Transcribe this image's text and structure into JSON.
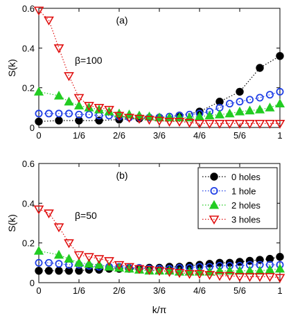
{
  "chart_data": [
    {
      "type": "scatter",
      "panel_label": "(a)",
      "annotation": "β=100",
      "ylabel": "S(k)",
      "xlabel": "",
      "xlim": [
        0,
        1
      ],
      "ylim": [
        0,
        0.6
      ],
      "xticks": [
        0,
        0.1667,
        0.3333,
        0.5,
        0.6667,
        0.8333,
        1
      ],
      "xtick_labels": [
        "0",
        "1/6",
        "2/6",
        "3/6",
        "4/6",
        "5/6",
        "1"
      ],
      "yticks": [
        0,
        0.2,
        0.4,
        0.6
      ],
      "ytick_labels": [
        "0",
        "0.2",
        "0.4",
        "0.6"
      ],
      "legend": false,
      "series": [
        {
          "name": "0 holes",
          "color": "#000000",
          "marker": "filled-circle",
          "x": [
            0,
            0.0833,
            0.1667,
            0.25,
            0.3333,
            0.4167,
            0.5,
            0.5833,
            0.6667,
            0.75,
            0.8333,
            0.9167,
            1
          ],
          "y": [
            0.03,
            0.035,
            0.035,
            0.035,
            0.04,
            0.045,
            0.05,
            0.06,
            0.08,
            0.13,
            0.18,
            0.3,
            0.36
          ]
        },
        {
          "name": "1 hole",
          "color": "#1f3fe6",
          "marker": "open-circle",
          "x": [
            0,
            0.0417,
            0.0833,
            0.125,
            0.1667,
            0.2083,
            0.25,
            0.2917,
            0.3333,
            0.375,
            0.4167,
            0.4583,
            0.5,
            0.5417,
            0.5833,
            0.625,
            0.6667,
            0.7083,
            0.75,
            0.7917,
            0.8333,
            0.875,
            0.9167,
            0.9583,
            1
          ],
          "y": [
            0.07,
            0.07,
            0.07,
            0.07,
            0.065,
            0.065,
            0.06,
            0.06,
            0.055,
            0.05,
            0.05,
            0.05,
            0.05,
            0.055,
            0.06,
            0.065,
            0.07,
            0.08,
            0.1,
            0.12,
            0.13,
            0.14,
            0.15,
            0.165,
            0.18
          ]
        },
        {
          "name": "2 holes",
          "color": "#22cc22",
          "marker": "filled-triangle-up",
          "x": [
            0,
            0.0833,
            0.125,
            0.1667,
            0.2083,
            0.25,
            0.2917,
            0.3333,
            0.375,
            0.4167,
            0.4583,
            0.5,
            0.5417,
            0.5833,
            0.625,
            0.6667,
            0.7083,
            0.75,
            0.7917,
            0.8333,
            0.875,
            0.9167,
            0.9583,
            1
          ],
          "y": [
            0.18,
            0.16,
            0.13,
            0.11,
            0.1,
            0.09,
            0.08,
            0.07,
            0.065,
            0.06,
            0.055,
            0.05,
            0.05,
            0.05,
            0.05,
            0.055,
            0.06,
            0.065,
            0.07,
            0.08,
            0.085,
            0.09,
            0.1,
            0.12
          ]
        },
        {
          "name": "3 holes",
          "color": "#e01010",
          "marker": "open-triangle-down",
          "x": [
            0,
            0.0417,
            0.0833,
            0.125,
            0.1667,
            0.2083,
            0.25,
            0.2917,
            0.3333,
            0.375,
            0.4167,
            0.4583,
            0.5,
            0.5417,
            0.5833,
            0.625,
            0.6667,
            0.7083,
            0.75,
            0.7917,
            0.8333,
            0.875,
            0.9167,
            0.9583,
            1
          ],
          "y": [
            0.59,
            0.54,
            0.4,
            0.26,
            0.15,
            0.11,
            0.1,
            0.09,
            0.06,
            0.05,
            0.045,
            0.04,
            0.035,
            0.03,
            0.03,
            0.025,
            0.02,
            0.02,
            0.02,
            0.02,
            0.02,
            0.02,
            0.02,
            0.02,
            0.02
          ]
        }
      ]
    },
    {
      "type": "scatter",
      "panel_label": "(b)",
      "annotation": "β=50",
      "ylabel": "S(k)",
      "xlabel": "k/π",
      "xlim": [
        0,
        1
      ],
      "ylim": [
        0,
        0.6
      ],
      "xticks": [
        0,
        0.1667,
        0.3333,
        0.5,
        0.6667,
        0.8333,
        1
      ],
      "xtick_labels": [
        "0",
        "1/6",
        "2/6",
        "3/6",
        "4/6",
        "5/6",
        "1"
      ],
      "yticks": [
        0,
        0.2,
        0.4,
        0.6
      ],
      "ytick_labels": [
        "0",
        "0.2",
        "0.4",
        "0.6"
      ],
      "legend": true,
      "legend_position": "top-right",
      "series": [
        {
          "name": "0 holes",
          "color": "#000000",
          "marker": "filled-circle",
          "x": [
            0,
            0.0417,
            0.0833,
            0.125,
            0.1667,
            0.2083,
            0.25,
            0.2917,
            0.3333,
            0.375,
            0.4167,
            0.4583,
            0.5,
            0.5417,
            0.5833,
            0.625,
            0.6667,
            0.7083,
            0.75,
            0.7917,
            0.8333,
            0.875,
            0.9167,
            0.9583,
            1
          ],
          "y": [
            0.06,
            0.06,
            0.06,
            0.06,
            0.06,
            0.065,
            0.065,
            0.07,
            0.07,
            0.07,
            0.07,
            0.075,
            0.075,
            0.08,
            0.08,
            0.085,
            0.09,
            0.095,
            0.1,
            0.1,
            0.105,
            0.11,
            0.115,
            0.12,
            0.13
          ]
        },
        {
          "name": "1 hole",
          "color": "#1f3fe6",
          "marker": "open-circle",
          "x": [
            0,
            0.0417,
            0.0833,
            0.125,
            0.1667,
            0.2083,
            0.25,
            0.2917,
            0.3333,
            0.375,
            0.4167,
            0.4583,
            0.5,
            0.5417,
            0.5833,
            0.625,
            0.6667,
            0.7083,
            0.75,
            0.7917,
            0.8333,
            0.875,
            0.9167,
            0.9583,
            1
          ],
          "y": [
            0.1,
            0.1,
            0.095,
            0.09,
            0.09,
            0.085,
            0.08,
            0.08,
            0.08,
            0.075,
            0.075,
            0.07,
            0.07,
            0.07,
            0.075,
            0.075,
            0.08,
            0.08,
            0.085,
            0.085,
            0.085,
            0.09,
            0.09,
            0.09,
            0.09
          ]
        },
        {
          "name": "2 holes",
          "color": "#22cc22",
          "marker": "filled-triangle-up",
          "x": [
            0,
            0.0833,
            0.125,
            0.1667,
            0.2083,
            0.25,
            0.2917,
            0.3333,
            0.375,
            0.4167,
            0.4583,
            0.5,
            0.5417,
            0.5833,
            0.625,
            0.6667,
            0.7083,
            0.75,
            0.7917,
            0.8333,
            0.875,
            0.9167,
            0.9583,
            1
          ],
          "y": [
            0.16,
            0.14,
            0.12,
            0.1,
            0.095,
            0.09,
            0.08,
            0.075,
            0.07,
            0.065,
            0.06,
            0.06,
            0.06,
            0.055,
            0.055,
            0.055,
            0.055,
            0.06,
            0.06,
            0.06,
            0.06,
            0.06,
            0.065,
            0.07
          ]
        },
        {
          "name": "3 holes",
          "color": "#e01010",
          "marker": "open-triangle-down",
          "x": [
            0,
            0.0417,
            0.0833,
            0.125,
            0.1667,
            0.2083,
            0.25,
            0.2917,
            0.3333,
            0.375,
            0.4167,
            0.4583,
            0.5,
            0.5417,
            0.5833,
            0.625,
            0.6667,
            0.7083,
            0.75,
            0.7917,
            0.8333,
            0.875,
            0.9167,
            0.9583,
            1
          ],
          "y": [
            0.37,
            0.35,
            0.28,
            0.2,
            0.14,
            0.13,
            0.12,
            0.11,
            0.09,
            0.08,
            0.07,
            0.065,
            0.06,
            0.055,
            0.05,
            0.045,
            0.045,
            0.04,
            0.035,
            0.035,
            0.03,
            0.03,
            0.03,
            0.03,
            0.025
          ]
        }
      ]
    }
  ]
}
